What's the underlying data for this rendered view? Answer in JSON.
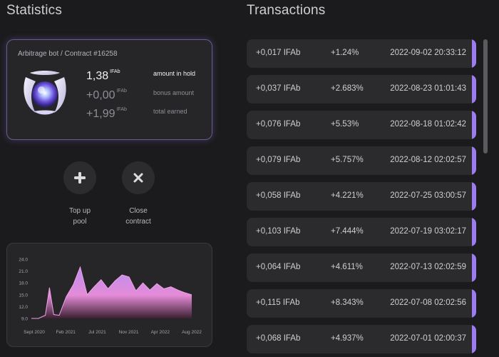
{
  "statistics": {
    "title": "Statistics",
    "contract_name": "Arbitrage bot / Contract #16258",
    "stats": [
      {
        "value": "1,38",
        "unit": "IFAb",
        "label": "amount in hold"
      },
      {
        "value": "+0,00",
        "unit": "IFAb",
        "label": "bonus amount"
      },
      {
        "value": "+1,99",
        "unit": "IFAb",
        "label": "total earned"
      }
    ],
    "actions": [
      {
        "icon": "plus-icon",
        "label": "Top up pool"
      },
      {
        "icon": "close-icon",
        "label": "Close contract"
      }
    ]
  },
  "chart_data": {
    "type": "area",
    "title": "",
    "xlabel": "",
    "ylabel": "",
    "x_tick_labels": [
      "Sept 2020",
      "Feb 2021",
      "Jul 2021",
      "Nov 2021",
      "Apr 2022",
      "Aug 2022"
    ],
    "y_tick_labels": [
      "24.0",
      "21.0",
      "18.0",
      "15.0",
      "12.0",
      "9.0"
    ],
    "ylim": [
      9,
      24
    ],
    "x_index_range": [
      0,
      23
    ],
    "x": [
      0,
      1,
      2,
      2.6,
      3.2,
      4,
      5,
      6,
      7,
      8,
      9,
      10,
      11,
      12,
      13,
      14,
      15,
      16,
      17,
      18,
      19,
      20,
      21,
      22,
      23
    ],
    "values": [
      9,
      9,
      9.8,
      16.8,
      10,
      9.8,
      14.5,
      17.5,
      22,
      15,
      17,
      18.8,
      16.5,
      18.5,
      20,
      19.5,
      16,
      18,
      16.2,
      17.8,
      16.5,
      17,
      16.2,
      15.5,
      15
    ],
    "gradient": [
      "#e58bd8",
      "#c78ee8",
      "#9d7cf0"
    ],
    "grid": false,
    "legend": "none"
  },
  "transactions": {
    "title": "Transactions",
    "accent": "#9d7cf0",
    "rows": [
      {
        "amount": "+0,017 IFAb",
        "pct": "+1.24%",
        "date": "2022-09-02 20:33:12"
      },
      {
        "amount": "+0,037 IFAb",
        "pct": "+2.683%",
        "date": "2022-08-23 01:01:43"
      },
      {
        "amount": "+0,076 IFAb",
        "pct": "+5.53%",
        "date": "2022-08-18 01:02:42"
      },
      {
        "amount": "+0,079 IFAb",
        "pct": "+5.757%",
        "date": "2022-08-12 02:02:57"
      },
      {
        "amount": "+0,058 IFAb",
        "pct": "+4.221%",
        "date": "2022-07-25 03:00:57"
      },
      {
        "amount": "+0,103 IFAb",
        "pct": "+7.444%",
        "date": "2022-07-19 03:02:17"
      },
      {
        "amount": "+0,064 IFAb",
        "pct": "+4.611%",
        "date": "2022-07-13 02:02:59"
      },
      {
        "amount": "+0,115 IFAb",
        "pct": "+8.343%",
        "date": "2022-07-08 02:02:56"
      },
      {
        "amount": "+0,068 IFAb",
        "pct": "+4.937%",
        "date": "2022-07-01 02:00:37"
      }
    ]
  }
}
